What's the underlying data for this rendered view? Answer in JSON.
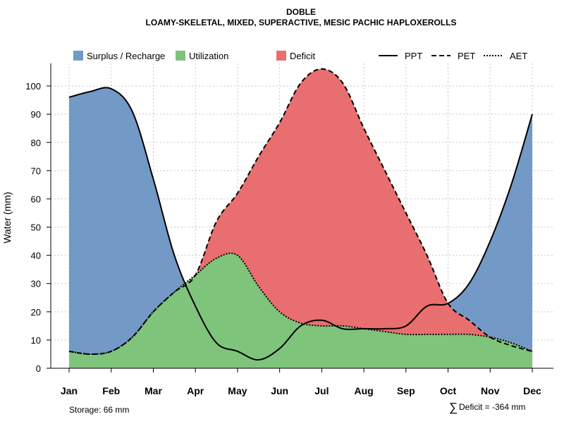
{
  "chart_data": {
    "type": "area",
    "title": "DOBLE",
    "subtitle": "LOAMY-SKELETAL, MIXED, SUPERACTIVE, MESIC PACHIC HAPLOXEROLLS",
    "xlabel": "",
    "ylabel": "Water (mm)",
    "ylim": [
      0,
      108
    ],
    "yticks": [
      0,
      10,
      20,
      30,
      40,
      50,
      60,
      70,
      80,
      90,
      100
    ],
    "grid": true,
    "legend_position": "top",
    "categories": [
      "Jan",
      "Feb",
      "Mar",
      "Apr",
      "May",
      "Jun",
      "Jul",
      "Aug",
      "Sep",
      "Oct",
      "Nov",
      "Dec"
    ],
    "x": [
      1,
      1.5,
      2,
      2.5,
      3,
      3.5,
      4,
      4.5,
      5,
      5.5,
      6,
      6.5,
      7,
      7.5,
      8,
      8.5,
      9,
      9.5,
      10,
      10.5,
      11,
      11.5,
      12
    ],
    "series": [
      {
        "name": "PPT",
        "line": "solid",
        "values": [
          96,
          98,
          99,
          91,
          67,
          40,
          22,
          9,
          6,
          3,
          7,
          15,
          17,
          14,
          14,
          14,
          15,
          22,
          23,
          30,
          45,
          65,
          90
        ]
      },
      {
        "name": "PET",
        "line": "dashed",
        "values": [
          6,
          5,
          6,
          11,
          20,
          27,
          33,
          52,
          62,
          75,
          87,
          101,
          106,
          101,
          85,
          70,
          55,
          40,
          23,
          17,
          11,
          8,
          6
        ]
      },
      {
        "name": "AET",
        "line": "dotted",
        "values": [
          6,
          5,
          6,
          11,
          20,
          27,
          33,
          39,
          40,
          29,
          20,
          16,
          15,
          15,
          14,
          13,
          12,
          12,
          12,
          12,
          11,
          9,
          6
        ]
      }
    ],
    "fills": [
      {
        "name": "Surplus / Recharge",
        "color": "#7399C6"
      },
      {
        "name": "Utilization",
        "color": "#7FC47B"
      },
      {
        "name": "Deficit",
        "color": "#E96E6F"
      }
    ],
    "annotations": {
      "storage": "Storage: 66 mm",
      "deficit_symbol": "∑",
      "deficit": "Deficit = -364 mm"
    }
  }
}
